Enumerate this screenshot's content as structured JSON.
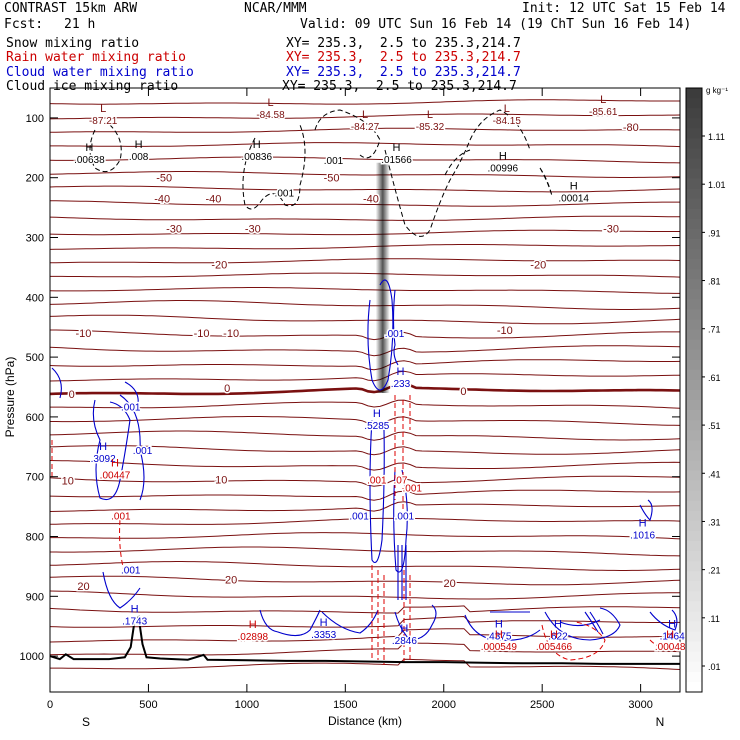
{
  "header": {
    "model": "CONTRAST 15km ARW",
    "center": "NCAR/MMM",
    "init": "Init: 12 UTC Sat 15 Feb 14",
    "fcst_label": "Fcst:",
    "fcst_value": "21 h",
    "valid": "Valid: 09 UTC Sun 16 Feb 14 (19 ChT Sun 16 Feb 14)"
  },
  "fields": [
    {
      "name": "Snow mixing ratio",
      "xy": "XY= 235.3,  2.5 to 235.3,214.7",
      "color": "#000000"
    },
    {
      "name": "Rain water mixing ratio",
      "xy": "XY= 235.3,  2.5 to 235.3,214.7",
      "color": "#cc0000"
    },
    {
      "name": "Cloud water mixing ratio",
      "xy": "XY= 235.3,  2.5 to 235.3,214.7",
      "color": "#0000cc"
    },
    {
      "name": "Cloud ice mixing ratio",
      "xy": "XY= 235.3,  2.5 to 235.3,214.7",
      "color": "#000000"
    }
  ],
  "chart_data": {
    "type": "cross-section",
    "xlabel": "Distance (km)",
    "ylabel": "Pressure (hPa)",
    "xlim": [
      0,
      3200
    ],
    "ylim": [
      50,
      1060
    ],
    "x_ticks": [
      0,
      500,
      1000,
      1500,
      2000,
      2500,
      3000
    ],
    "y_ticks": [
      100,
      200,
      300,
      400,
      500,
      600,
      700,
      800,
      900,
      1000
    ],
    "end_labels": {
      "left": "S",
      "right": "N"
    },
    "colorbar": {
      "unit": "g kg⁻¹",
      "ticks": [
        "1.11",
        "1.01",
        ".91",
        ".81",
        ".71",
        ".61",
        ".51",
        ".41",
        ".31",
        ".21",
        ".11",
        ".01"
      ]
    },
    "temperature_contours": [
      {
        "label": "-80",
        "x": 2950,
        "p": 115
      },
      {
        "label": "-50",
        "x": 580,
        "p": 200
      },
      {
        "label": "-50",
        "x": 1430,
        "p": 200
      },
      {
        "label": "-40",
        "x": 570,
        "p": 235
      },
      {
        "label": "-40",
        "x": 830,
        "p": 235
      },
      {
        "label": "-40",
        "x": 1630,
        "p": 235
      },
      {
        "label": "-30",
        "x": 630,
        "p": 285
      },
      {
        "label": "-30",
        "x": 1030,
        "p": 285
      },
      {
        "label": "-30",
        "x": 2850,
        "p": 285
      },
      {
        "label": "-20",
        "x": 860,
        "p": 345
      },
      {
        "label": "-20",
        "x": 2480,
        "p": 345
      },
      {
        "label": "-10",
        "x": 170,
        "p": 460
      },
      {
        "label": "-10",
        "x": 770,
        "p": 460
      },
      {
        "label": "-10",
        "x": 920,
        "p": 460
      },
      {
        "label": "-10",
        "x": 2310,
        "p": 455
      },
      {
        "label": "0",
        "x": 110,
        "p": 562
      },
      {
        "label": "0",
        "x": 900,
        "p": 552
      },
      {
        "label": "0",
        "x": 2100,
        "p": 557
      },
      {
        "label": "10",
        "x": 90,
        "p": 706
      },
      {
        "label": "10",
        "x": 870,
        "p": 705
      },
      {
        "label": "20",
        "x": 170,
        "p": 883
      },
      {
        "label": "20",
        "x": 920,
        "p": 872
      },
      {
        "label": "20",
        "x": 2030,
        "p": 878
      }
    ],
    "extrema": [
      {
        "letter": "L",
        "value": "-87.21",
        "x": 270,
        "p": 100,
        "color": "#7a1010"
      },
      {
        "letter": "L",
        "value": "-84.58",
        "x": 1120,
        "p": 90,
        "color": "#7a1010"
      },
      {
        "letter": "L",
        "value": "-84.27",
        "x": 1600,
        "p": 110,
        "color": "#7a1010"
      },
      {
        "letter": "L",
        "value": "-85.32",
        "x": 1930,
        "p": 110,
        "color": "#7a1010"
      },
      {
        "letter": "L",
        "value": "-84.15",
        "x": 2320,
        "p": 100,
        "color": "#7a1010"
      },
      {
        "letter": "L",
        "value": "-85.61",
        "x": 2810,
        "p": 85,
        "color": "#7a1010"
      },
      {
        "letter": "H",
        "value": ".00638",
        "x": 200,
        "p": 165,
        "color": "#000000"
      },
      {
        "letter": "H",
        "value": ".008",
        "x": 450,
        "p": 160,
        "color": "#000000"
      },
      {
        "letter": "H",
        "value": ".00836",
        "x": 1050,
        "p": 160,
        "color": "#000000"
      },
      {
        "letter": "H",
        "value": ".01566",
        "x": 1760,
        "p": 165,
        "color": "#000000"
      },
      {
        "letter": "H",
        "value": ".00996",
        "x": 2300,
        "p": 180,
        "color": "#000000"
      },
      {
        "letter": "H",
        "value": ".00014",
        "x": 2660,
        "p": 230,
        "color": "#000000"
      },
      {
        "letter": "H",
        "value": ".3092",
        "x": 270,
        "p": 665,
        "color": "#0000cc"
      },
      {
        "letter": "H",
        "value": ".5285",
        "x": 1660,
        "p": 610,
        "color": "#0000cc"
      },
      {
        "letter": "H",
        "value": ".233",
        "x": 1780,
        "p": 540,
        "color": "#0000cc"
      },
      {
        "letter": "H",
        "value": ".1743",
        "x": 430,
        "p": 937,
        "color": "#0000cc"
      },
      {
        "letter": "H",
        "value": ".3353",
        "x": 1390,
        "p": 960,
        "color": "#0000cc"
      },
      {
        "letter": "H",
        "value": ".2846",
        "x": 1800,
        "p": 970,
        "color": "#0000cc"
      },
      {
        "letter": "H",
        "value": ".4375",
        "x": 2280,
        "p": 962,
        "color": "#0000cc"
      },
      {
        "letter": "H",
        "value": ".622",
        "x": 2580,
        "p": 962,
        "color": "#0000cc"
      },
      {
        "letter": "H",
        "value": ".1016",
        "x": 3010,
        "p": 793,
        "color": "#0000cc"
      },
      {
        "letter": "H",
        "value": ".00447",
        "x": 330,
        "p": 693,
        "color": "#cc0000"
      },
      {
        "letter": "H",
        "value": ".02898",
        "x": 1030,
        "p": 963,
        "color": "#cc0000"
      },
      {
        "letter": "H",
        "value": ".000549",
        "x": 2280,
        "p": 980,
        "color": "#cc0000"
      },
      {
        "letter": "H",
        "value": ".005466",
        "x": 2560,
        "p": 980,
        "color": "#cc0000"
      },
      {
        "letter": "H",
        "value": ".1464",
        "x": 3160,
        "p": 962,
        "color": "#0000cc"
      },
      {
        "letter": "H",
        "value": ".00048",
        "x": 3150,
        "p": 980,
        "color": "#cc0000"
      }
    ],
    "small_labels": [
      {
        "text": ".001",
        "x": 1440,
        "p": 170,
        "color": "#000000"
      },
      {
        "text": ".001",
        "x": 1190,
        "p": 225,
        "color": "#000000"
      },
      {
        "text": ".001",
        "x": 1750,
        "p": 460,
        "color": "#0000cc"
      },
      {
        "text": ".001",
        "x": 410,
        "p": 583,
        "color": "#0000cc"
      },
      {
        "text": ".001",
        "x": 470,
        "p": 655,
        "color": "#0000cc"
      },
      {
        "text": ".001",
        "x": 1570,
        "p": 765,
        "color": "#0000cc"
      },
      {
        "text": ".001",
        "x": 1800,
        "p": 765,
        "color": "#0000cc"
      },
      {
        "text": ".001",
        "x": 410,
        "p": 855,
        "color": "#0000cc"
      },
      {
        "text": ".001",
        "x": 360,
        "p": 765,
        "color": "#cc0000"
      },
      {
        "text": ".001",
        "x": 1840,
        "p": 718,
        "color": "#cc0000"
      },
      {
        "text": ".001",
        "x": 1660,
        "p": 705,
        "color": "#cc0000"
      },
      {
        "text": ".07",
        "x": 1780,
        "p": 705,
        "color": "#cc0000"
      }
    ],
    "terrain": [
      [
        0,
        1000
      ],
      [
        50,
        1005
      ],
      [
        80,
        997
      ],
      [
        120,
        1005
      ],
      [
        200,
        1005
      ],
      [
        300,
        1005
      ],
      [
        380,
        1002
      ],
      [
        410,
        985
      ],
      [
        430,
        940
      ],
      [
        450,
        935
      ],
      [
        470,
        980
      ],
      [
        490,
        1002
      ],
      [
        560,
        1004
      ],
      [
        700,
        1006
      ],
      [
        780,
        998
      ],
      [
        800,
        1006
      ],
      [
        1000,
        1007
      ],
      [
        1200,
        1008
      ],
      [
        1400,
        1008
      ],
      [
        1600,
        1009
      ],
      [
        1800,
        1010
      ],
      [
        2000,
        1010
      ],
      [
        2200,
        1011
      ],
      [
        2400,
        1012
      ],
      [
        2600,
        1012
      ],
      [
        2800,
        1013
      ],
      [
        3000,
        1013
      ],
      [
        3200,
        1013
      ]
    ]
  }
}
